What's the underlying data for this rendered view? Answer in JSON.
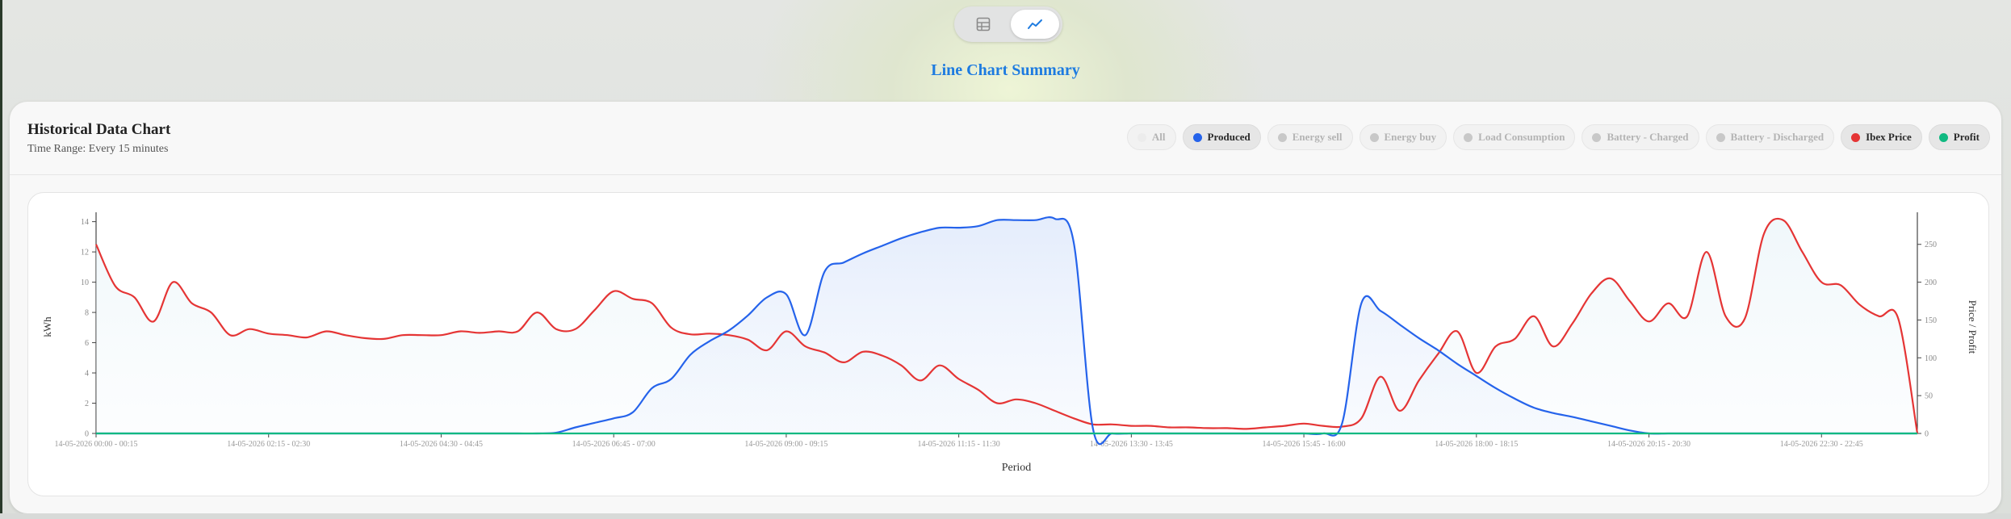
{
  "toggle": {
    "options": [
      {
        "name": "table-view",
        "icon": "table-icon",
        "active": false
      },
      {
        "name": "line-chart-view",
        "icon": "line-chart-icon",
        "active": true
      }
    ]
  },
  "summary_title": "Line Chart Summary",
  "card": {
    "title": "Historical Data Chart",
    "subtitle": "Time Range: Every 15 minutes"
  },
  "legend": [
    {
      "label": "All",
      "color": "#ececec",
      "active": false
    },
    {
      "label": "Produced",
      "color": "#2563eb",
      "active": true
    },
    {
      "label": "Energy sell",
      "color": "#c8c8c8",
      "active": false
    },
    {
      "label": "Energy buy",
      "color": "#c8c8c8",
      "active": false
    },
    {
      "label": "Load Consumption",
      "color": "#c8c8c8",
      "active": false
    },
    {
      "label": "Battery - Charged",
      "color": "#c8c8c8",
      "active": false
    },
    {
      "label": "Battery - Discharged",
      "color": "#c8c8c8",
      "active": false
    },
    {
      "label": "Ibex Price",
      "color": "#e53535",
      "active": true
    },
    {
      "label": "Profit",
      "color": "#10b981",
      "active": true
    }
  ],
  "chart_data": {
    "type": "line",
    "xlabel": "Period",
    "ylabel": "kWh",
    "y2label": "Price / Profit",
    "ylim": [
      0,
      14.3
    ],
    "yticks": [
      0,
      2,
      4,
      6,
      8,
      10,
      12,
      14
    ],
    "y2lim": [
      0,
      286
    ],
    "y2ticks": [
      0,
      50,
      100,
      150,
      200,
      250
    ],
    "xcount": 96,
    "xticks": [
      {
        "index": 0,
        "label": "14-05-2026 00:00 - 00:15"
      },
      {
        "index": 9,
        "label": "14-05-2026 02:15 - 02:30"
      },
      {
        "index": 18,
        "label": "14-05-2026 04:30 - 04:45"
      },
      {
        "index": 27,
        "label": "14-05-2026 06:45 - 07:00"
      },
      {
        "index": 36,
        "label": "14-05-2026 09:00 - 09:15"
      },
      {
        "index": 45,
        "label": "14-05-2026 11:15 - 11:30"
      },
      {
        "index": 54,
        "label": "14-05-2026 13:30 - 13:45"
      },
      {
        "index": 63,
        "label": "14-05-2026 15:45 - 16:00"
      },
      {
        "index": 72,
        "label": "14-05-2026 18:00 - 18:15"
      },
      {
        "index": 81,
        "label": "14-05-2026 20:15 - 20:30"
      },
      {
        "index": 90,
        "label": "14-05-2026 22:30 - 22:45"
      }
    ],
    "grid": false,
    "series": [
      {
        "name": "Produced",
        "axis": "left",
        "color": "#2563eb",
        "values": [
          0,
          0,
          0,
          0,
          0,
          0,
          0,
          0,
          0,
          0,
          0,
          0,
          0,
          0,
          0,
          0,
          0,
          0,
          0,
          0,
          0,
          0,
          0,
          0,
          0.05,
          0.4,
          0.7,
          1,
          1.4,
          3,
          3.6,
          5.2,
          6.1,
          6.8,
          7.8,
          9,
          9.2,
          6.5,
          10.7,
          11.3,
          11.9,
          12.4,
          12.9,
          13.3,
          13.6,
          13.6,
          13.7,
          14.1,
          14.1,
          14.1,
          14.2,
          12.6,
          0.3,
          0,
          0,
          0,
          0,
          0,
          0,
          0,
          0,
          0,
          0,
          0,
          0,
          0.7,
          8.6,
          8.1,
          7.2,
          6.3,
          5.5,
          4.6,
          3.8,
          3,
          2.3,
          1.7,
          1.35,
          1.1,
          0.8,
          0.5,
          0.2,
          0,
          0,
          0,
          0,
          0,
          0,
          0,
          0,
          0,
          0,
          0,
          0,
          0,
          0,
          0
        ]
      },
      {
        "name": "Ibex Price",
        "axis": "right",
        "color": "#e53535",
        "values": [
          250,
          195,
          180,
          148,
          200,
          172,
          160,
          130,
          138,
          132,
          130,
          127,
          135,
          130,
          126,
          125,
          130,
          130,
          130,
          135,
          133,
          135,
          135,
          160,
          138,
          138,
          163,
          188,
          178,
          172,
          140,
          131,
          132,
          130,
          124,
          110,
          135,
          115,
          107,
          94,
          108,
          103,
          90,
          70,
          90,
          72,
          58,
          40,
          45,
          40,
          30,
          20,
          12,
          12,
          10,
          10,
          8,
          8,
          7,
          7,
          6,
          8,
          10,
          13,
          10,
          9,
          20,
          75,
          30,
          70,
          105,
          135,
          80,
          115,
          125,
          155,
          115,
          145,
          185,
          205,
          175,
          148,
          172,
          155,
          240,
          155,
          152,
          264,
          282,
          240,
          200,
          196,
          170,
          155,
          152,
          0
        ]
      },
      {
        "name": "Profit",
        "axis": "right",
        "color": "#10b981",
        "values": [
          0,
          0,
          0,
          0,
          0,
          0,
          0,
          0,
          0,
          0,
          0,
          0,
          0,
          0,
          0,
          0,
          0,
          0,
          0,
          0,
          0,
          0,
          0,
          0,
          0,
          0,
          0,
          0,
          0,
          0,
          0,
          0,
          0,
          0,
          0,
          0,
          0,
          0,
          0,
          0,
          0,
          0,
          0,
          0,
          0,
          0,
          0,
          0,
          0,
          0,
          0,
          0,
          0,
          0,
          0,
          0,
          0,
          0,
          0,
          0,
          0,
          0,
          0,
          0,
          0,
          0,
          0,
          0,
          0,
          0,
          0,
          0,
          0,
          0,
          0,
          0,
          0,
          0,
          0,
          0,
          0,
          0,
          0,
          0,
          0,
          0,
          0,
          0,
          0,
          0,
          0,
          0,
          0,
          0,
          0,
          0
        ]
      }
    ]
  }
}
